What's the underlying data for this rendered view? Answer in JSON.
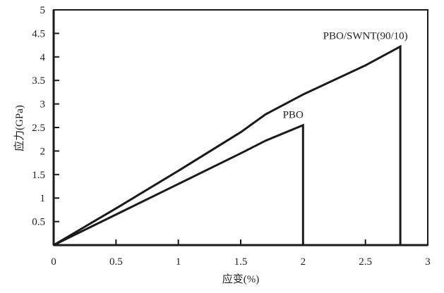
{
  "chart_data": {
    "type": "line",
    "title": "",
    "xlabel": "应变(%)",
    "ylabel": "应力(GPa)",
    "xlim": [
      0,
      3
    ],
    "ylim": [
      0,
      5
    ],
    "xticks": [
      "0",
      "0.5",
      "1",
      "1.5",
      "2",
      "2.5",
      "3"
    ],
    "yticks": [
      "0.5",
      "1",
      "1.5",
      "2",
      "2.5",
      "3",
      "3.5",
      "4",
      "4.5",
      "5"
    ],
    "grid": false,
    "legend": "none (inline annotations)",
    "series": [
      {
        "name": "PBO/SWNT(90/10)",
        "x": [
          0,
          0.5,
          1.0,
          1.5,
          1.7,
          2.0,
          2.5,
          2.78,
          2.78
        ],
        "y": [
          0,
          0.78,
          1.58,
          2.4,
          2.78,
          3.2,
          3.82,
          4.22,
          0
        ]
      },
      {
        "name": "PBO",
        "x": [
          0,
          0.5,
          1.0,
          1.5,
          1.7,
          2.0,
          2.0
        ],
        "y": [
          0,
          0.65,
          1.3,
          1.95,
          2.22,
          2.55,
          0
        ]
      }
    ],
    "annotations": [
      {
        "text": "PBO/SWNT(90/10)",
        "x": 2.5,
        "y": 4.45
      },
      {
        "text": "PBO",
        "x": 1.92,
        "y": 2.78
      }
    ]
  },
  "labels": {
    "xlabel": "应变(%)",
    "ylabel": "应力(GPa)",
    "annot_swnt": "PBO/SWNT(90/10)",
    "annot_pbo": "PBO"
  }
}
